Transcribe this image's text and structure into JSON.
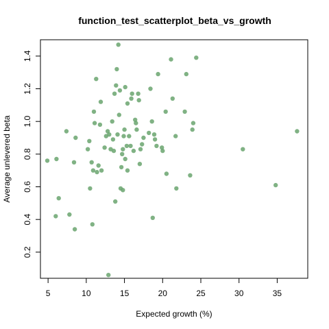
{
  "chart_data": {
    "type": "scatter",
    "title": "function_test_scatterplot_beta_vs_growth",
    "xlabel": "Expected growth (%)",
    "ylabel": "Average unlevered beta",
    "xlim": [
      4,
      39
    ],
    "ylim": [
      0.04,
      1.5
    ],
    "xticks": [
      "5",
      "10",
      "15",
      "20",
      "25",
      "30",
      "35"
    ],
    "yticks": [
      "0.2",
      "0.4",
      "0.6",
      "0.8",
      "1.0",
      "1.2",
      "1.4"
    ],
    "grid": false,
    "legend": "none",
    "point_color": "#6aa46e",
    "points": [
      {
        "x": 4.9,
        "y": 0.76
      },
      {
        "x": 6.0,
        "y": 0.42
      },
      {
        "x": 6.1,
        "y": 0.77
      },
      {
        "x": 6.4,
        "y": 0.53
      },
      {
        "x": 7.4,
        "y": 0.94
      },
      {
        "x": 7.8,
        "y": 0.43
      },
      {
        "x": 8.4,
        "y": 0.75
      },
      {
        "x": 8.5,
        "y": 0.34
      },
      {
        "x": 8.6,
        "y": 0.9
      },
      {
        "x": 10.2,
        "y": 0.83
      },
      {
        "x": 10.4,
        "y": 0.88
      },
      {
        "x": 10.5,
        "y": 0.59
      },
      {
        "x": 10.7,
        "y": 0.75
      },
      {
        "x": 10.8,
        "y": 0.37
      },
      {
        "x": 10.9,
        "y": 0.7
      },
      {
        "x": 11.0,
        "y": 1.06
      },
      {
        "x": 11.1,
        "y": 0.99
      },
      {
        "x": 11.3,
        "y": 1.26
      },
      {
        "x": 11.4,
        "y": 0.69
      },
      {
        "x": 11.6,
        "y": 0.73
      },
      {
        "x": 11.8,
        "y": 0.98
      },
      {
        "x": 11.9,
        "y": 1.12
      },
      {
        "x": 12.0,
        "y": 0.7
      },
      {
        "x": 12.4,
        "y": 0.84
      },
      {
        "x": 12.6,
        "y": 0.91
      },
      {
        "x": 12.8,
        "y": 0.94
      },
      {
        "x": 12.9,
        "y": 0.06
      },
      {
        "x": 13.0,
        "y": 0.92
      },
      {
        "x": 13.2,
        "y": 0.83
      },
      {
        "x": 13.4,
        "y": 1.0
      },
      {
        "x": 13.5,
        "y": 0.89
      },
      {
        "x": 13.6,
        "y": 0.82
      },
      {
        "x": 13.7,
        "y": 1.17
      },
      {
        "x": 13.8,
        "y": 0.51
      },
      {
        "x": 13.9,
        "y": 1.22
      },
      {
        "x": 14.0,
        "y": 1.32
      },
      {
        "x": 14.1,
        "y": 0.92
      },
      {
        "x": 14.2,
        "y": 1.47
      },
      {
        "x": 14.3,
        "y": 1.04
      },
      {
        "x": 14.4,
        "y": 1.19
      },
      {
        "x": 14.5,
        "y": 0.59
      },
      {
        "x": 14.6,
        "y": 0.72
      },
      {
        "x": 14.7,
        "y": 0.8
      },
      {
        "x": 14.8,
        "y": 0.83
      },
      {
        "x": 14.8,
        "y": 0.58
      },
      {
        "x": 14.9,
        "y": 0.91
      },
      {
        "x": 15.0,
        "y": 0.95
      },
      {
        "x": 15.1,
        "y": 0.77
      },
      {
        "x": 15.1,
        "y": 1.21
      },
      {
        "x": 15.3,
        "y": 0.85
      },
      {
        "x": 15.4,
        "y": 1.11
      },
      {
        "x": 15.4,
        "y": 0.7
      },
      {
        "x": 15.6,
        "y": 0.91
      },
      {
        "x": 15.8,
        "y": 0.85
      },
      {
        "x": 15.9,
        "y": 1.14
      },
      {
        "x": 16.0,
        "y": 1.17
      },
      {
        "x": 16.2,
        "y": 0.82
      },
      {
        "x": 16.4,
        "y": 1.01
      },
      {
        "x": 16.5,
        "y": 0.99
      },
      {
        "x": 16.6,
        "y": 0.95
      },
      {
        "x": 16.8,
        "y": 1.17
      },
      {
        "x": 16.9,
        "y": 1.13
      },
      {
        "x": 17.0,
        "y": 0.74
      },
      {
        "x": 17.1,
        "y": 0.83
      },
      {
        "x": 17.3,
        "y": 0.86
      },
      {
        "x": 17.5,
        "y": 0.9
      },
      {
        "x": 18.2,
        "y": 0.93
      },
      {
        "x": 18.4,
        "y": 1.2
      },
      {
        "x": 18.6,
        "y": 1.0
      },
      {
        "x": 18.7,
        "y": 0.41
      },
      {
        "x": 18.9,
        "y": 0.92
      },
      {
        "x": 19.0,
        "y": 0.89
      },
      {
        "x": 19.2,
        "y": 0.85
      },
      {
        "x": 19.4,
        "y": 1.29
      },
      {
        "x": 19.9,
        "y": 0.84
      },
      {
        "x": 20.0,
        "y": 0.82
      },
      {
        "x": 20.4,
        "y": 1.06
      },
      {
        "x": 20.5,
        "y": 0.68
      },
      {
        "x": 21.1,
        "y": 1.38
      },
      {
        "x": 21.3,
        "y": 1.14
      },
      {
        "x": 21.7,
        "y": 0.91
      },
      {
        "x": 21.8,
        "y": 0.59
      },
      {
        "x": 22.9,
        "y": 1.06
      },
      {
        "x": 23.1,
        "y": 1.29
      },
      {
        "x": 23.6,
        "y": 0.67
      },
      {
        "x": 23.9,
        "y": 0.95
      },
      {
        "x": 24.0,
        "y": 0.99
      },
      {
        "x": 24.4,
        "y": 1.39
      },
      {
        "x": 30.5,
        "y": 0.83
      },
      {
        "x": 34.8,
        "y": 0.61
      },
      {
        "x": 37.6,
        "y": 0.94
      }
    ]
  }
}
